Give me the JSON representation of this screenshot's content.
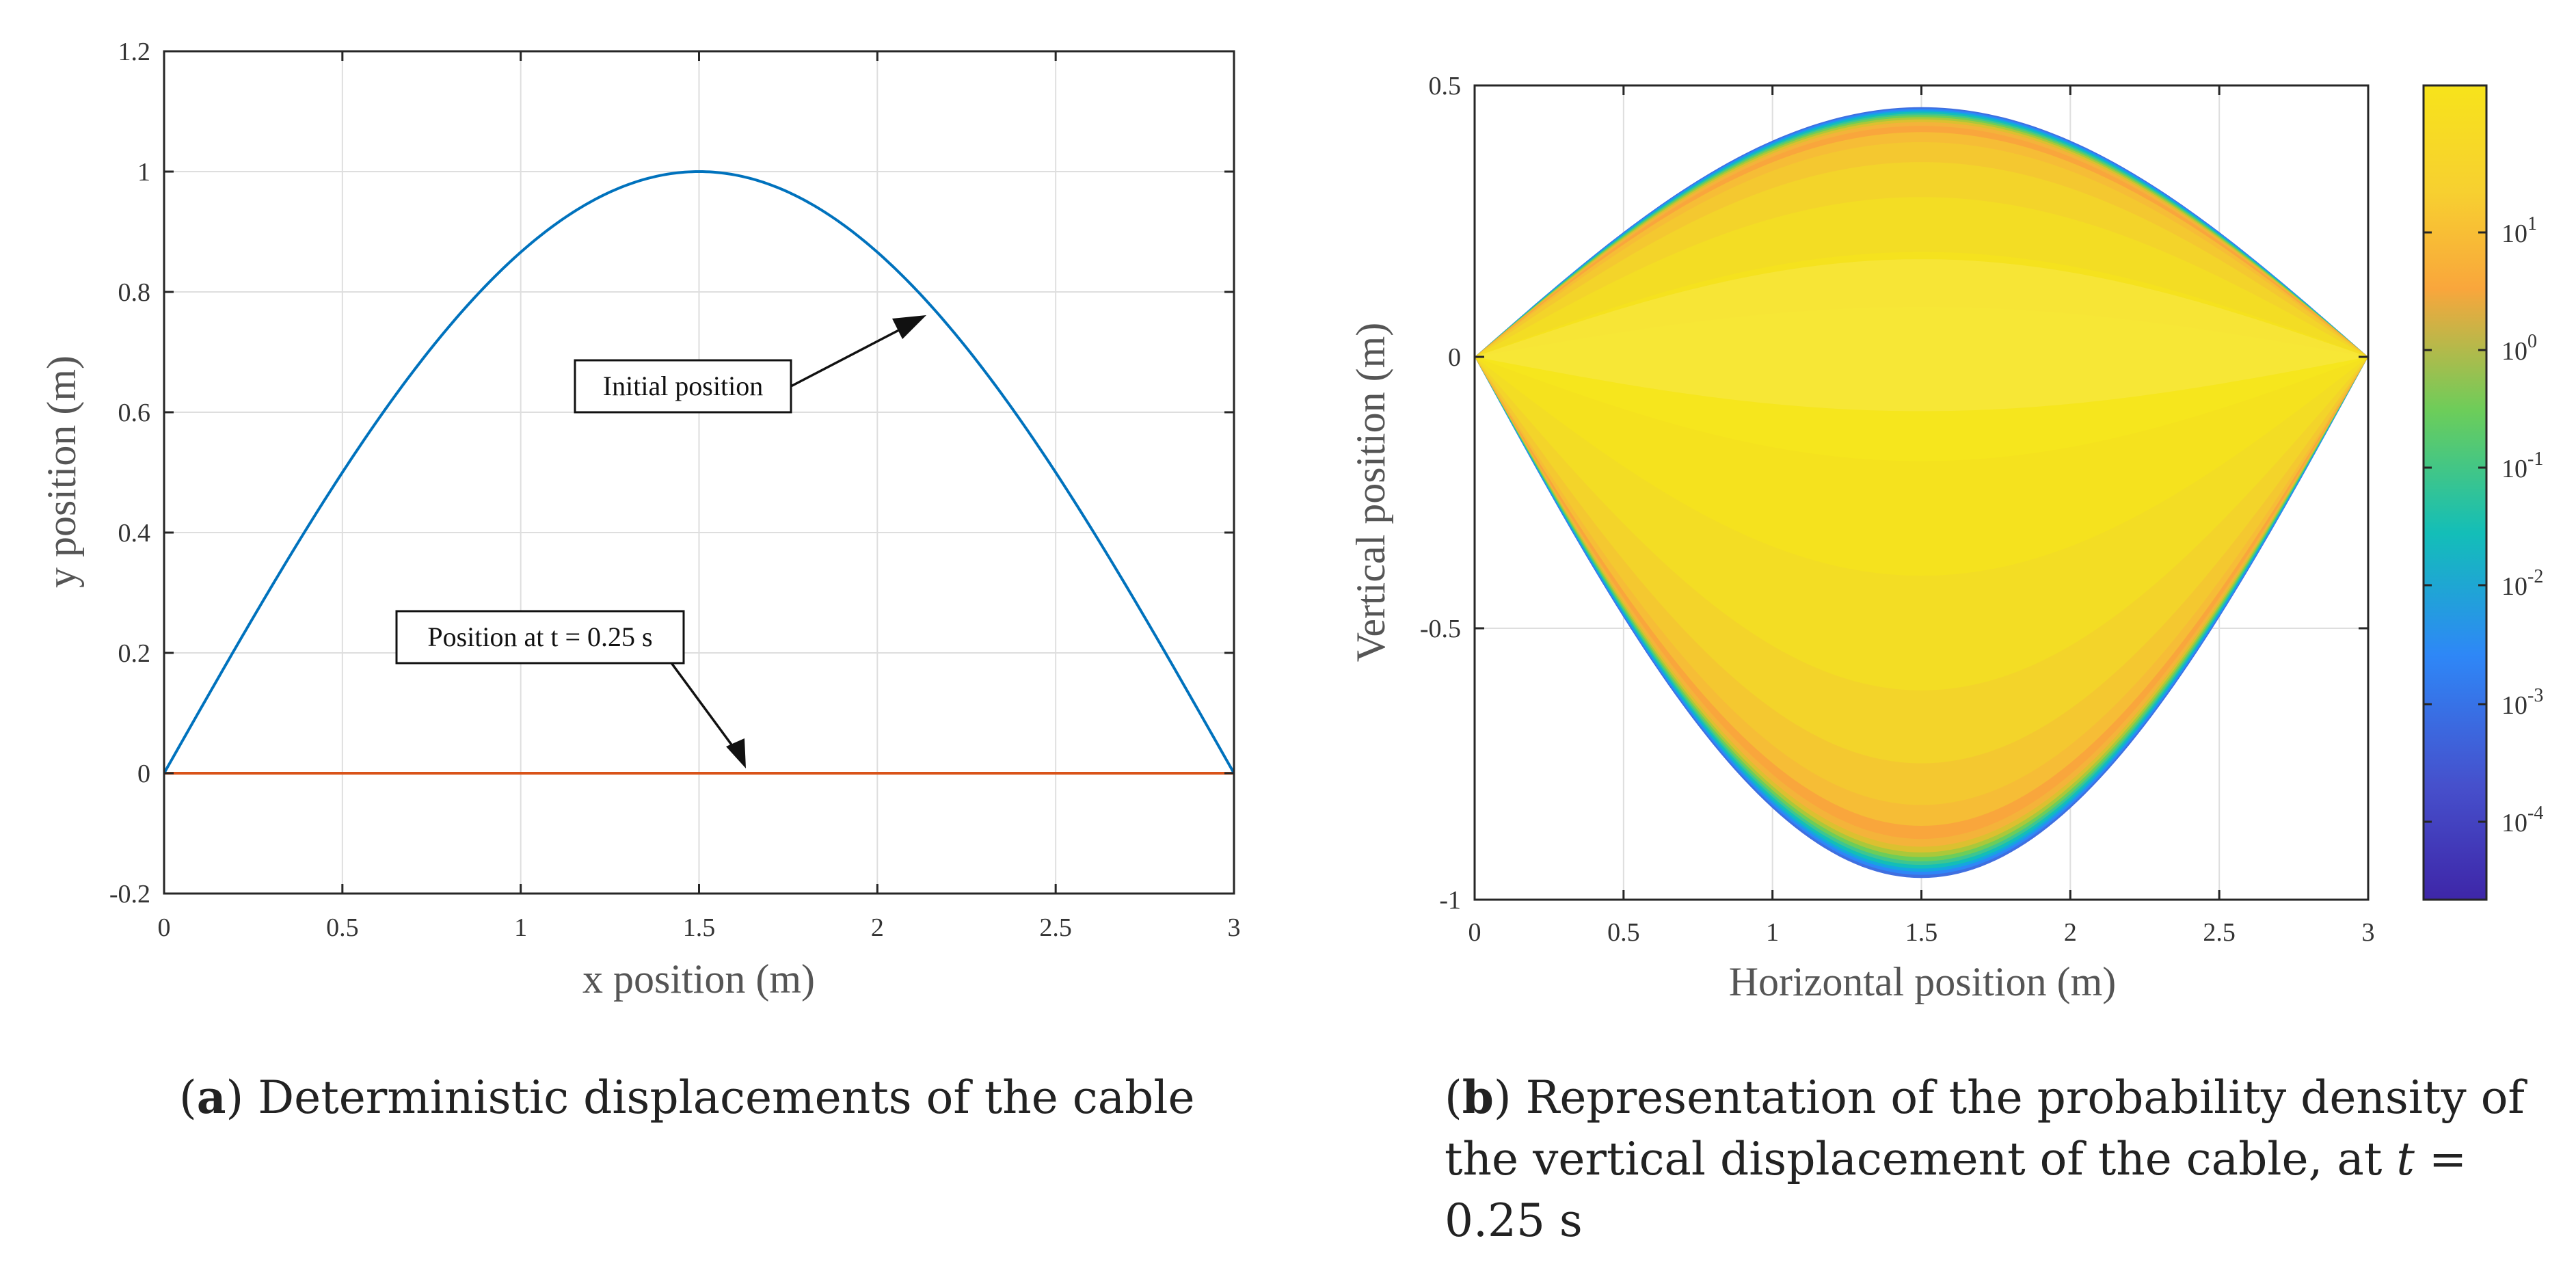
{
  "chart_data": [
    {
      "type": "line",
      "panel": "a",
      "xlabel": "x position (m)",
      "ylabel": "y position (m)",
      "xlim": [
        0,
        3
      ],
      "ylim": [
        -0.2,
        1.2
      ],
      "xticks": [
        0,
        0.5,
        1,
        1.5,
        2,
        2.5,
        3
      ],
      "xtick_labels": [
        "0",
        "0.5",
        "1",
        "1.5",
        "2",
        "2.5",
        "3"
      ],
      "yticks": [
        -0.2,
        0,
        0.2,
        0.4,
        0.6,
        0.8,
        1,
        1.2
      ],
      "ytick_labels": [
        "-0.2",
        "0",
        "0.2",
        "0.4",
        "0.6",
        "0.8",
        "1",
        "1.2"
      ],
      "grid": true,
      "series": [
        {
          "name": "Initial position",
          "function": "sin(pi*x/3)",
          "x": [
            0,
            0.25,
            0.5,
            0.75,
            1,
            1.25,
            1.5,
            1.75,
            2,
            2.25,
            2.5,
            2.75,
            3
          ],
          "values": [
            0,
            0.259,
            0.5,
            0.707,
            0.866,
            0.966,
            1,
            0.966,
            0.866,
            0.707,
            0.5,
            0.259,
            0
          ],
          "color": "#0072BD"
        },
        {
          "name": "Position at t = 0.25 s",
          "x": [
            0,
            3
          ],
          "values": [
            0,
            0
          ],
          "color": "#D95319"
        }
      ],
      "annotations": [
        {
          "text": "Initial position",
          "arrow_to": [
            2.12,
            0.765
          ]
        },
        {
          "text": "Position at t = 0.25 s",
          "arrow_to": [
            1.63,
            0.005
          ]
        }
      ]
    },
    {
      "type": "heatmap",
      "panel": "b",
      "xlabel": "Horizontal position (m)",
      "ylabel": "Vertical position (m)",
      "xlim": [
        0,
        3
      ],
      "ylim": [
        -1,
        0.5
      ],
      "xticks": [
        0,
        0.5,
        1,
        1.5,
        2,
        2.5,
        3
      ],
      "xtick_labels": [
        "0",
        "0.5",
        "1",
        "1.5",
        "2",
        "2.5",
        "3"
      ],
      "yticks": [
        -1,
        -0.5,
        0,
        0.5
      ],
      "ytick_labels": [
        "-1",
        "-0.5",
        "0",
        "0.5"
      ],
      "grid": true,
      "upper_envelope_peak": 0.46,
      "lower_envelope_trough": -0.96,
      "colorbar": {
        "scale": "log",
        "tick_exponents": [
          1,
          0,
          -1,
          -2,
          -3,
          -4
        ],
        "tick_base": "10",
        "colors": [
          "#3e26a8",
          "#2e87f7",
          "#13beb8",
          "#6ccd5a",
          "#f9a63c",
          "#f7e31b"
        ]
      }
    }
  ],
  "captions": {
    "a": {
      "label": "a",
      "text": " Deterministic displacements of the cable"
    },
    "b": {
      "label": "b",
      "text_line1": " Representation of the probability density of",
      "text_line2_pre": "the vertical displacement of the cable, at ",
      "text_line2_var": "t",
      "text_line2_eq": " =",
      "text_line3": "0.25 s"
    }
  }
}
